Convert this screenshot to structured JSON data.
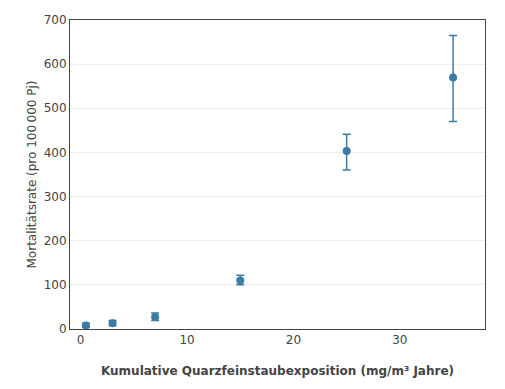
{
  "chart_data": {
    "type": "scatter",
    "x": [
      0.5,
      3.0,
      7.0,
      15.0,
      25.0,
      35.0
    ],
    "values": [
      8,
      13,
      27,
      110,
      403,
      570
    ],
    "yerr_lower": [
      4,
      5,
      8,
      10,
      43,
      100
    ],
    "yerr_upper": [
      5,
      6,
      9,
      12,
      38,
      95
    ],
    "color": "#3a7ca5",
    "xlabel": "Kumulative Quarzfeinstaubexposition (mg/m³ Jahre)",
    "ylabel": "Mortalitätsrate (pro 100 000 Pj)",
    "xlim": [
      -1,
      38
    ],
    "ylim": [
      0,
      700
    ],
    "xticks": [
      0,
      10,
      20,
      30
    ],
    "yticks": [
      0,
      100,
      200,
      300,
      400,
      500,
      600,
      700
    ],
    "grid": "y"
  }
}
